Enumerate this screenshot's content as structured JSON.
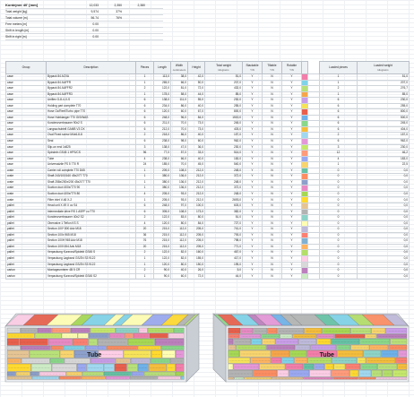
{
  "summary": {
    "title": "Kontejner 40' [mm]",
    "title_values": [
      "12,033",
      "2,350",
      "2,380"
    ],
    "rows": [
      {
        "label": "Total weight [kg]",
        "values": [
          "9,574",
          "37%"
        ]
      },
      {
        "label": "Total volume [m]",
        "values": [
          "56.74",
          "76%"
        ]
      },
      {
        "label": "Free meters [m]",
        "values": [
          "0.00",
          ""
        ]
      },
      {
        "label": "Shift in length [m]",
        "values": [
          "0.00",
          ""
        ]
      },
      {
        "label": "Shift in right [m]",
        "values": [
          "0.00",
          ""
        ]
      }
    ]
  },
  "table": {
    "headers": {
      "group": "Group",
      "description": "Description",
      "pieces": "Pieces",
      "length": "Length",
      "width": "Width",
      "height": "Height",
      "dims_unit": "centimeters",
      "total_weight": "Total weight",
      "total_weight_unit": "kilograms",
      "stackable": "Stackable",
      "tiltable": "Tiltable",
      "rotable": "Rotable",
      "flags_unit": "Y/N",
      "loaded_pieces": "Loaded pieces",
      "loaded_weight": "Loaded weight",
      "loaded_weight_unit": "kilograms"
    },
    "rows": [
      {
        "group": "case",
        "desc": "Bypack 84 ACVA",
        "pieces": "1",
        "length": "113,0",
        "width": "38,0",
        "height": "42,0",
        "weight": "51,0",
        "s": "Y",
        "t": "N",
        "r": "Y",
        "color": "#f27ea9",
        "loaded": "1",
        "lweight": "51,0"
      },
      {
        "group": "case",
        "desc": "Bypack 84 AAFFR",
        "pieces": "1",
        "length": "265,0",
        "width": "66,0",
        "height": "50,0",
        "weight": "207,0",
        "s": "Y",
        "t": "N",
        "r": "Y",
        "color": "#7fd3e8",
        "loaded": "1",
        "lweight": "207,0"
      },
      {
        "group": "case",
        "desc": "Bypack 84 AAFFR2",
        "pieces": "2",
        "length": "122,0",
        "width": "81,0",
        "height": "72,0",
        "weight": "432,0",
        "s": "Y",
        "t": "N",
        "r": "Y",
        "color": "#b8e07a",
        "loaded": "2",
        "lweight": "276,7"
      },
      {
        "group": "case",
        "desc": "Bypack 84 AAFFR3",
        "pieces": "1",
        "length": "178,0",
        "width": "58,0",
        "height": "44,0",
        "weight": "85,0",
        "s": "Y",
        "t": "N",
        "r": "Y",
        "color": "#f5a64a",
        "loaded": "1",
        "lweight": "85,0"
      },
      {
        "group": "case",
        "desc": "Uniflex G-8-4-X-S",
        "pieces": "6",
        "length": "138,0",
        "width": "111,0",
        "height": "55,0",
        "weight": "230,0",
        "s": "Y",
        "t": "N",
        "r": "Y",
        "color": "#c99ee8",
        "loaded": "6",
        "lweight": "230,0"
      },
      {
        "group": "case",
        "desc": "Holding part complete T70",
        "pieces": "6",
        "length": "234,0",
        "width": "86,0",
        "height": "40,0",
        "weight": "255,0",
        "s": "Y",
        "t": "N",
        "r": "Y",
        "color": "#f6e35a",
        "loaded": "6",
        "lweight": "255,0"
      },
      {
        "group": "case",
        "desc": "Hose Oc/Reel/Turbo pipe T70",
        "pieces": "6",
        "length": "120,0",
        "width": "60,0",
        "height": "67,0",
        "weight": "800,0",
        "s": "Y",
        "t": "N",
        "r": "Y",
        "color": "#e8604c",
        "loaded": "6",
        "lweight": "800,0"
      },
      {
        "group": "case",
        "desc": "Hose Hubklanger T70 GIS/WAS",
        "pieces": "6",
        "length": "248,0",
        "width": "96,0",
        "height": "84,0",
        "weight": "1500,0",
        "s": "Y",
        "t": "N",
        "r": "Y",
        "color": "#6fb1e8",
        "loaded": "6",
        "lweight": "500,0"
      },
      {
        "group": "case",
        "desc": "Kondenzverbrauner 90x2 S",
        "pieces": "6",
        "length": "211,0",
        "width": "70,0",
        "height": "73,0",
        "weight": "245,0",
        "s": "Y",
        "t": "N",
        "r": "Y",
        "color": "#8ad88a",
        "loaded": "6",
        "lweight": "245,0"
      },
      {
        "group": "case",
        "desc": "Langsschubtell GAMB V3 DX",
        "pieces": "6",
        "length": "212,0",
        "width": "70,0",
        "height": "73,0",
        "weight": "403,0",
        "s": "Y",
        "t": "N",
        "r": "Y",
        "color": "#f4bd3c",
        "loaded": "6",
        "lweight": "404,0"
      },
      {
        "group": "case",
        "desc": "Oval Fixed screw M4x6-8-8",
        "pieces": "2",
        "length": "218,0",
        "width": "86,0",
        "height": "40,0",
        "weight": "157,0",
        "s": "Y",
        "t": "N",
        "r": "Y",
        "color": "#a0d8f0",
        "loaded": "2",
        "lweight": "157,0"
      },
      {
        "group": "case",
        "desc": "Seal",
        "pieces": "6",
        "length": "238,0",
        "width": "98,0",
        "height": "60,0",
        "weight": "962,0",
        "s": "Y",
        "t": "N",
        "r": "Y",
        "color": "#e497d8",
        "loaded": "6",
        "lweight": "962,0"
      },
      {
        "group": "case",
        "desc": "Slip-on end 1x825",
        "pieces": "3",
        "length": "138,0",
        "width": "47,0",
        "height": "36,0",
        "weight": "230,0",
        "s": "Y",
        "t": "N",
        "r": "Y",
        "color": "#c5e86c",
        "loaded": "3",
        "lweight": "230,0"
      },
      {
        "group": "case",
        "desc": "Spindeln GS45 1 HPS/CS",
        "pieces": "96",
        "length": "77,0",
        "width": "57,0",
        "height": "33,0",
        "weight": "514,0",
        "s": "Y",
        "t": "N",
        "r": "Y",
        "color": "#ff9b7a",
        "loaded": "12",
        "lweight": "46,2"
      },
      {
        "group": "case",
        "desc": "Tube",
        "pieces": "4",
        "length": "238,0",
        "width": "66,0",
        "height": "40,0",
        "weight": "183,0",
        "s": "Y",
        "t": "N",
        "r": "Y",
        "color": "#9aa8f0",
        "loaded": "4",
        "lweight": "183,0"
      },
      {
        "group": "case",
        "desc": "Universalzile FS 5 770 R",
        "pieces": "24",
        "length": "185,0",
        "width": "70,0",
        "height": "45,0",
        "weight": "540,0",
        "s": "Y",
        "t": "N",
        "r": "Y",
        "color": "#f7d46e",
        "loaded": "1",
        "lweight": "22,5"
      },
      {
        "group": "crate",
        "desc": "Carrier roll complete T70 D65",
        "pieces": "1",
        "length": "209,0",
        "width": "108,0",
        "height": "212,0",
        "weight": "248,0",
        "s": "Y",
        "t": "N",
        "r": "Y",
        "color": "#66c2a5",
        "loaded": "0",
        "lweight": "0,0"
      },
      {
        "group": "crate",
        "desc": "Shaft 240/100/160 45x2/77 T70",
        "pieces": "1",
        "length": "380,0",
        "width": "136,0",
        "height": "212,0",
        "weight": "372,0",
        "s": "Y",
        "t": "N",
        "r": "Y",
        "color": "#fc8d62",
        "loaded": "0",
        "lweight": "0,0"
      },
      {
        "group": "crate",
        "desc": "Shaft 258x/200x/200 45x2/77 T70",
        "pieces": "1",
        "length": "380,0",
        "width": "136,0",
        "height": "212,0",
        "weight": "248,0",
        "s": "Y",
        "t": "N",
        "r": "Y",
        "color": "#8da0cb",
        "loaded": "0",
        "lweight": "0,0"
      },
      {
        "group": "crate",
        "desc": "Suction duct 400x/T70 90",
        "pieces": "1",
        "length": "380,0",
        "width": "136,0",
        "height": "212,0",
        "weight": "372,0",
        "s": "Y",
        "t": "N",
        "r": "Y",
        "color": "#e78ac3",
        "loaded": "0",
        "lweight": "0,0"
      },
      {
        "group": "crate",
        "desc": "Suction duct 400x/T70 80",
        "pieces": "4",
        "length": "205,0",
        "width": "93,0",
        "height": "212,0",
        "weight": "248,0",
        "s": "Y",
        "t": "N",
        "r": "Y",
        "color": "#a6d854",
        "loaded": "0",
        "lweight": "0,0"
      },
      {
        "group": "crate",
        "desc": "Filter inlet V-46 X-2",
        "pieces": "1",
        "length": "205,0",
        "width": "93,0",
        "height": "212,0",
        "weight": "2693,0",
        "s": "Y",
        "t": "N",
        "r": "Y",
        "color": "#ffd92f",
        "loaded": "0",
        "lweight": "0,0"
      },
      {
        "group": "pallet",
        "desc": "Head unit X 49 X uv S4",
        "pieces": "6",
        "length": "248,0",
        "width": "97,0",
        "height": "100,0",
        "weight": "603,0",
        "s": "Y",
        "t": "N",
        "r": "Y",
        "color": "#e5c494",
        "loaded": "0",
        "lweight": "0,0"
      },
      {
        "group": "pallet",
        "desc": "Intermediate drive RS 1 ASFF cu T70",
        "pieces": "6",
        "length": "305,0",
        "width": "108,0",
        "height": "173,0",
        "weight": "382,0",
        "s": "Y",
        "t": "N",
        "r": "Y",
        "color": "#b3b3b3",
        "loaded": "0",
        "lweight": "0,0"
      },
      {
        "group": "pallet",
        "desc": "Kondenzverbrauner 40x2 S2",
        "pieces": "2",
        "length": "122,0",
        "width": "83,0",
        "height": "80,0",
        "weight": "51,0",
        "s": "Y",
        "t": "N",
        "r": "Y",
        "color": "#8dd3c7",
        "loaded": "0",
        "lweight": "0,0"
      },
      {
        "group": "pallet",
        "desc": "Obervalve 1 Teflon KS S",
        "pieces": "4",
        "length": "120,0",
        "width": "80,0",
        "height": "84,0",
        "weight": "727,0",
        "s": "Y",
        "t": "N",
        "r": "Y",
        "color": "#ffffb3",
        "loaded": "0",
        "lweight": "0,0"
      },
      {
        "group": "pallet",
        "desc": "Section 100* 800 Adv M18",
        "pieces": "20",
        "length": "215,0",
        "width": "112,0",
        "height": "205,0",
        "weight": "741,0",
        "s": "Y",
        "t": "N",
        "r": "Y",
        "color": "#bebada",
        "loaded": "0",
        "lweight": "0,0"
      },
      {
        "group": "pallet",
        "desc": "Section 100x 965 M18",
        "pieces": "36",
        "length": "215,0",
        "width": "112,0",
        "height": "205,0",
        "weight": "793,0",
        "s": "Y",
        "t": "N",
        "r": "Y",
        "color": "#fb8072",
        "loaded": "0",
        "lweight": "0,0"
      },
      {
        "group": "pallet",
        "desc": "Section 100H 965 Adv M18",
        "pieces": "76",
        "length": "215,0",
        "width": "112,0",
        "height": "205,0",
        "weight": "798,0",
        "s": "Y",
        "t": "N",
        "r": "Y",
        "color": "#80b1d3",
        "loaded": "0",
        "lweight": "0,0"
      },
      {
        "group": "pallet",
        "desc": "Section 100f 454 Adv M18",
        "pieces": "20",
        "length": "215,0",
        "width": "112,0",
        "height": "205,0",
        "weight": "771,0",
        "s": "Y",
        "t": "N",
        "r": "Y",
        "color": "#fdb462",
        "loaded": "0",
        "lweight": "0,0"
      },
      {
        "group": "pallet",
        "desc": "Verpackung Kurzrost/Spidekt GS45 S",
        "pieces": "2",
        "length": "122,0",
        "width": "82,0",
        "height": "160,0",
        "weight": "467,0",
        "s": "Y",
        "t": "N",
        "r": "Y",
        "color": "#b3de69",
        "loaded": "0",
        "lweight": "0,0"
      },
      {
        "group": "pallet",
        "desc": "Verpackung Lagband GS/2N S3 9122",
        "pieces": "1",
        "length": "122,0",
        "width": "82,0",
        "height": "155,0",
        "weight": "417,0",
        "s": "Y",
        "t": "N",
        "r": "Y",
        "color": "#fccde5",
        "loaded": "0",
        "lweight": "0,0"
      },
      {
        "group": "pallet",
        "desc": "Verpackung Lagband GS/2N S3 9122",
        "pieces": "1",
        "length": "120,0",
        "width": "80,0",
        "height": "150,0",
        "weight": "195,0",
        "s": "Y",
        "t": "N",
        "r": "Y",
        "color": "#d9d9d9",
        "loaded": "0",
        "lweight": "0,0"
      },
      {
        "group": "carton",
        "desc": "Montageumterer 4B 5 CR",
        "pieces": "2",
        "length": "90,0",
        "width": "40,0",
        "height": "26,0",
        "weight": "5,0",
        "s": "Y",
        "t": "N",
        "r": "Y",
        "color": "#bc80bd",
        "loaded": "0",
        "lweight": "0,0"
      },
      {
        "group": "carton",
        "desc": "Verpackung Kurzrost/Spidekt GS45 S2",
        "pieces": "1",
        "length": "90,0",
        "width": "60,0",
        "height": "72,0",
        "weight": "44,0",
        "s": "Y",
        "t": "N",
        "r": "Y",
        "color": "#ccebc5",
        "loaded": "0",
        "lweight": "0,0"
      }
    ]
  },
  "viz_labels": [
    "Tube",
    "Tube"
  ],
  "colors": {
    "header_bg": "#eef1f4",
    "grid": "#cfd5db",
    "container_edge": "#9aa0a8"
  }
}
